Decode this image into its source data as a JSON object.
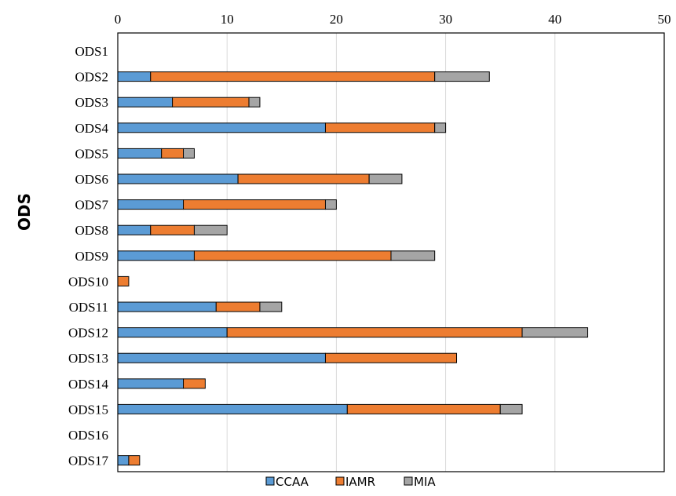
{
  "chart_data": {
    "type": "bar",
    "orientation": "horizontal",
    "stacked": true,
    "title": "",
    "xlabel": "",
    "ylabel": "ODS",
    "xlim": [
      0,
      50
    ],
    "x_ticks": [
      "0",
      "10",
      "20",
      "30",
      "40",
      "50"
    ],
    "x_axis_position": "top",
    "grid": "vertical",
    "legend_position": "bottom",
    "categories": [
      "ODS1",
      "ODS2",
      "ODS3",
      "ODS4",
      "ODS5",
      "ODS6",
      "ODS7",
      "ODS8",
      "ODS9",
      "ODS10",
      "ODS11",
      "ODS12",
      "ODS13",
      "ODS14",
      "ODS15",
      "ODS16",
      "ODS17"
    ],
    "series": [
      {
        "name": "CCAA",
        "color": "#5b9bd5",
        "values": [
          0,
          3,
          5,
          19,
          4,
          11,
          6,
          3,
          7,
          0,
          9,
          10,
          19,
          6,
          21,
          0,
          1
        ]
      },
      {
        "name": "IAMR",
        "color": "#ed7d31",
        "values": [
          0,
          26,
          7,
          10,
          2,
          12,
          13,
          4,
          18,
          1,
          4,
          27,
          12,
          2,
          14,
          0,
          1
        ]
      },
      {
        "name": "MIA",
        "color": "#a5a5a5",
        "values": [
          0,
          5,
          1,
          1,
          1,
          3,
          1,
          3,
          4,
          0,
          2,
          6,
          0,
          0,
          2,
          0,
          0
        ]
      }
    ]
  }
}
